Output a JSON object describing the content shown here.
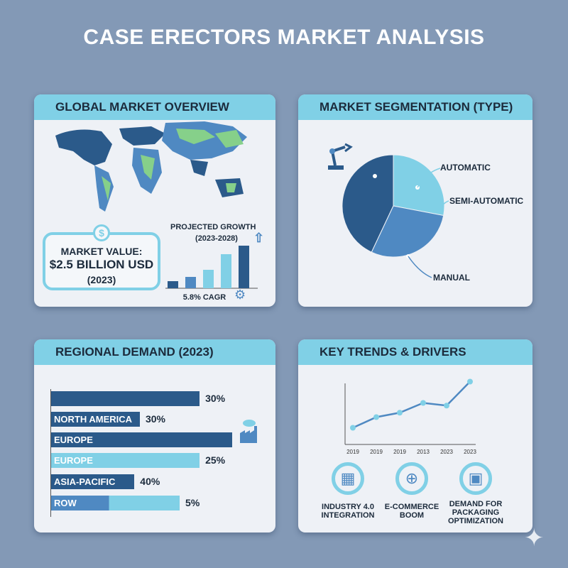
{
  "title": "CASE ERECTORS MARKET ANALYSIS",
  "overview": {
    "header": "GLOBAL MARKET OVERVIEW",
    "market_value_label": "MARKET VALUE:",
    "market_value": "$2.5 BILLION USD",
    "market_value_year": "(2023)",
    "growth_title": "PROJECTED GROWTH",
    "growth_period": "(2023-2028)",
    "cagr": "5.8% CAGR",
    "icons": [
      "dollar-icon",
      "arrow-up-icon",
      "gear-icon",
      "world-map"
    ]
  },
  "segmentation": {
    "header": "MARKET SEGMENTATION (TYPE)",
    "labels": [
      "AUTOMATIC",
      "SEMI-AUTOMATIC",
      "MANUAL"
    ],
    "icon": "robot-arm-icon"
  },
  "regional": {
    "header": "REGIONAL DEMAND (2023)",
    "icon": "factory-icon"
  },
  "trends": {
    "header": "KEY TRENDS & DRIVERS",
    "drivers": [
      {
        "icon": "chip-icon",
        "line1": "INDUSTRY 4.0",
        "line2": "INTEGRATION",
        "line3": ""
      },
      {
        "icon": "globe-icon",
        "line1": "E-COMMERCE",
        "line2": "BOOM",
        "line3": ""
      },
      {
        "icon": "box-icon",
        "line1": "DEMAND FOR",
        "line2": "PACKAGING",
        "line3": "OPTIMIZATION"
      }
    ]
  },
  "colors": {
    "dark": "#2b5a8a",
    "mid": "#4f89c2",
    "light": "#80d0e6",
    "header": "#80d0e6",
    "background": "#8399b6"
  },
  "chart_data": [
    {
      "type": "bar",
      "orientation": "vertical",
      "values": [
        1,
        1.6,
        2.6,
        4.8,
        6.0
      ],
      "title": "PROJECTED GROWTH (2023-2028)",
      "annotation": "5.8% CAGR"
    },
    {
      "type": "pie",
      "categories": [
        "(unlabeled)",
        "AUTOMATIC",
        "SEMI-AUTOMATIC / MANUAL"
      ],
      "values": [
        43,
        28,
        29
      ]
    },
    {
      "type": "bar",
      "orientation": "horizontal",
      "categories": [
        "",
        "NORTH AMERICA",
        "EUROPE",
        "EUROPE",
        "ASIA-PACIFIC",
        "ROW"
      ],
      "values": [
        30,
        30,
        null,
        25,
        40,
        5
      ],
      "labels": [
        "30%",
        "30%",
        "",
        "25%",
        "40%",
        "5%"
      ],
      "bar_lengths": [
        82,
        49,
        100,
        82,
        46,
        71
      ],
      "colors": [
        "#2b5a8a",
        "#2b5a8a",
        "#2b5a8a",
        "#80d0e6",
        "#2b5a8a",
        "#4f89c2"
      ]
    },
    {
      "type": "line",
      "x": [
        "2019",
        "2019",
        "2019",
        "2013",
        "2023",
        "2023"
      ],
      "values": [
        1,
        2.2,
        2.7,
        3.8,
        3.5,
        6.2
      ]
    }
  ]
}
